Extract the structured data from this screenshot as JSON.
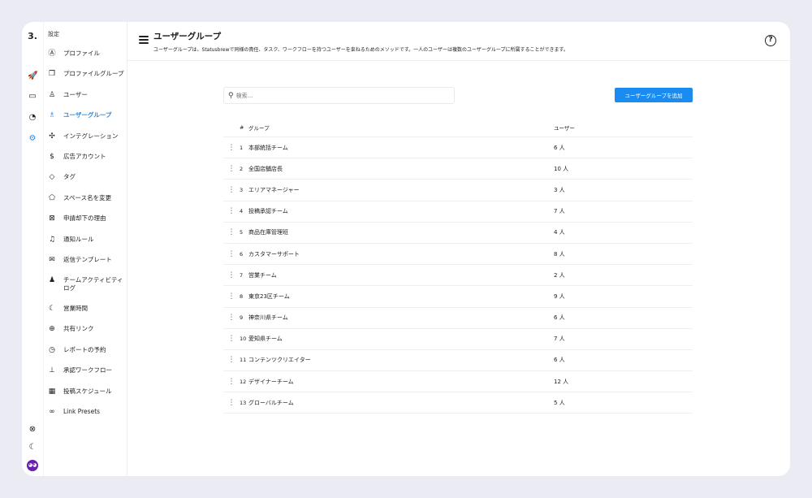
{
  "rail": {
    "logo": "3.",
    "icons": [
      "rocket-icon",
      "inbox-icon",
      "analytics-icon",
      "settings-icon",
      "help-circle-icon",
      "moon-icon",
      "avatar"
    ]
  },
  "sidebar": {
    "heading": "設定",
    "items": [
      {
        "label": "プロファイル",
        "icon": "profile-icon"
      },
      {
        "label": "プロファイルグループ",
        "icon": "profile-group-icon"
      },
      {
        "label": "ユーザー",
        "icon": "user-icon"
      },
      {
        "label": "ユーザーグループ",
        "icon": "user-group-icon",
        "active": true
      },
      {
        "label": "インテグレーション",
        "icon": "puzzle-icon"
      },
      {
        "label": "広告アカウント",
        "icon": "dollar-icon"
      },
      {
        "label": "タグ",
        "icon": "tag-icon"
      },
      {
        "label": "スペース名を変更",
        "icon": "space-icon"
      },
      {
        "label": "申請却下の理由",
        "icon": "reject-icon"
      },
      {
        "label": "通知ルール",
        "icon": "bell-icon"
      },
      {
        "label": "返信テンプレート",
        "icon": "template-icon"
      },
      {
        "label": "チームアクティビティログ",
        "icon": "activity-icon"
      },
      {
        "label": "営業時間",
        "icon": "moon-clock-icon"
      },
      {
        "label": "共有リンク",
        "icon": "globe-icon"
      },
      {
        "label": "レポートの予約",
        "icon": "clock-icon"
      },
      {
        "label": "承認ワークフロー",
        "icon": "stamp-icon"
      },
      {
        "label": "投稿スケジュール",
        "icon": "calendar-icon"
      },
      {
        "label": "Link Presets",
        "icon": "link-icon"
      }
    ]
  },
  "header": {
    "title": "ユーザーグループ",
    "description": "ユーザーグループは、Statusbrewで同様の責任、タスク、ワークフローを持つユーザーを束ねるためのメソッドです。一人のユーザーは複数のユーザーグループに所属することができます。",
    "help": "?"
  },
  "search": {
    "placeholder": "検索..."
  },
  "add_button": "ユーザーグループを追加",
  "accent": "#1a8cf0",
  "table": {
    "headers": [
      "#",
      "グループ",
      "ユーザー"
    ],
    "rows": [
      {
        "n": "1",
        "group": "本部統括チーム",
        "users": "6 人"
      },
      {
        "n": "2",
        "group": "全国店舗店長",
        "users": "10 人"
      },
      {
        "n": "3",
        "group": "エリアマネージャー",
        "users": "3 人"
      },
      {
        "n": "4",
        "group": "投稿承認チーム",
        "users": "7 人"
      },
      {
        "n": "5",
        "group": "商品在庫管理班",
        "users": "4 人"
      },
      {
        "n": "6",
        "group": "カスタマーサポート",
        "users": "8 人"
      },
      {
        "n": "7",
        "group": "営業チーム",
        "users": "2 人"
      },
      {
        "n": "8",
        "group": "東京23区チーム",
        "users": "9 人"
      },
      {
        "n": "9",
        "group": "神奈川県チーム",
        "users": "6 人"
      },
      {
        "n": "10",
        "group": "愛知県チーム",
        "users": "7 人"
      },
      {
        "n": "11",
        "group": "コンテンツクリエイター",
        "users": "6 人"
      },
      {
        "n": "12",
        "group": "デザイナーチーム",
        "users": "12 人"
      },
      {
        "n": "13",
        "group": "グローバルチーム",
        "users": "5 人"
      }
    ]
  }
}
